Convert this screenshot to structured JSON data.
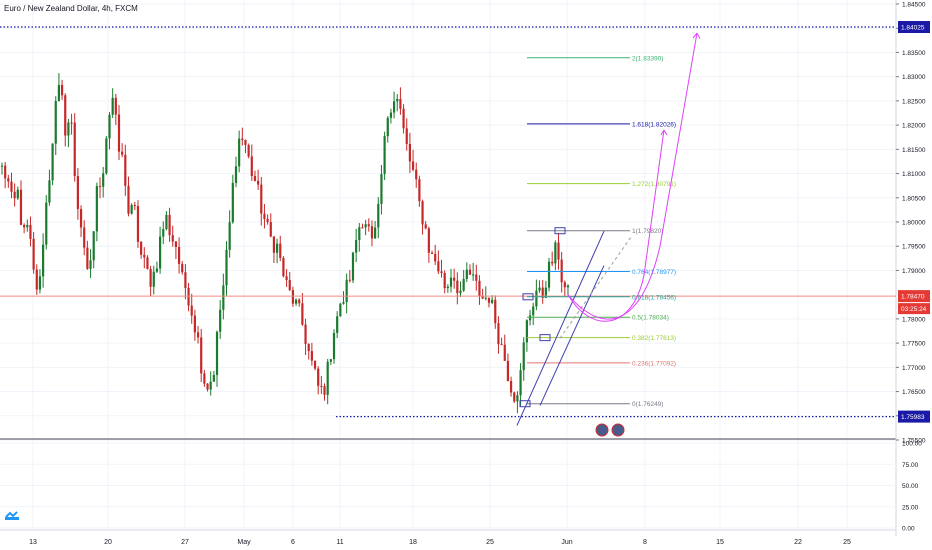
{
  "header": {
    "title": "Euro / New Zealand Dollar, 4h, FXCM"
  },
  "colors": {
    "up": "#26a69a",
    "up_dark": "#1b7a2e",
    "down": "#ef5350",
    "down_dark": "#c62828",
    "grid": "#f0f3fa",
    "axis_text": "#131722",
    "dotted_level": "#1a1aa6",
    "price_line": "#f28b82",
    "price_label": "#e53935",
    "curve": "#e040fb",
    "channel": "#3f3faf",
    "fib_0": "#787b86",
    "fib_0236": "#e57373",
    "fib_0382": "#9acd32",
    "fib_05": "#4caf50",
    "fib_0618": "#26a69a",
    "fib_0764": "#2196f3",
    "fib_1": "#787b86",
    "fib_1272": "#9acd32",
    "fib_1618": "#1a1aa6",
    "fib_2": "#3cb371"
  },
  "chart_data": [
    {
      "type": "candlestick",
      "title": "Euro / New Zealand Dollar, 4h, FXCM",
      "symbol": "EURNZD",
      "interval": "4h",
      "source": "FXCM",
      "x_ticks": [
        "13",
        "20",
        "27",
        "May",
        "6",
        "11",
        "18",
        "25",
        "Jun",
        "8",
        "15",
        "22",
        "25"
      ],
      "y_ticks": [
        "1.84500",
        "1.84000",
        "1.83500",
        "1.83000",
        "1.82500",
        "1.82000",
        "1.81500",
        "1.81000",
        "1.80500",
        "1.80000",
        "1.79500",
        "1.79000",
        "1.78000",
        "1.77500",
        "1.77000",
        "1.76500",
        "1.76000",
        "1.75500"
      ],
      "ylim": [
        1.755,
        1.845
      ],
      "current_price": "1.78470",
      "countdown": "03:25:24",
      "levels": [
        {
          "label": "1.84025",
          "value": 1.84025,
          "style": "dotted"
        },
        {
          "label": "1.75983",
          "value": 1.75983,
          "style": "dotted"
        }
      ],
      "fibonacci": [
        {
          "label": "2(1.83390)",
          "ratio": 2,
          "value": 1.8339
        },
        {
          "label": "1.618(1.82026)",
          "ratio": 1.618,
          "value": 1.82026
        },
        {
          "label": "1.272(1.80791)",
          "ratio": 1.272,
          "value": 1.80791
        },
        {
          "label": "1(1.79820)",
          "ratio": 1,
          "value": 1.7982
        },
        {
          "label": "0.764(1.78977)",
          "ratio": 0.764,
          "value": 1.78977
        },
        {
          "label": "0.618(1.78456)",
          "ratio": 0.618,
          "value": 1.78456
        },
        {
          "label": "0.5(1.78034)",
          "ratio": 0.5,
          "value": 1.78034
        },
        {
          "label": "0.382(1.77613)",
          "ratio": 0.382,
          "value": 1.77613
        },
        {
          "label": "0.236(1.77092)",
          "ratio": 0.236,
          "value": 1.77092
        },
        {
          "label": "0(1.76249)",
          "ratio": 0,
          "value": 1.76249
        }
      ],
      "path": [
        [
          1.811,
          1.809
        ],
        [
          1.803,
          1.806
        ],
        [
          1.797,
          1.799
        ],
        [
          1.789,
          1.785
        ],
        [
          1.8,
          1.81
        ],
        [
          1.823,
          1.828
        ],
        [
          1.819,
          1.822
        ],
        [
          1.806,
          1.799
        ],
        [
          1.788,
          1.794
        ],
        [
          1.807,
          1.81
        ],
        [
          1.821,
          1.826
        ],
        [
          1.815,
          1.812
        ],
        [
          1.801,
          1.803
        ],
        [
          1.794,
          1.791
        ],
        [
          1.788,
          1.79
        ],
        [
          1.797,
          1.801
        ],
        [
          1.797,
          1.795
        ],
        [
          1.788,
          1.786
        ],
        [
          1.781,
          1.776
        ],
        [
          1.768,
          1.766
        ],
        [
          1.769,
          1.78
        ],
        [
          1.788,
          1.799
        ],
        [
          1.812,
          1.818
        ],
        [
          1.816,
          1.811
        ],
        [
          1.808,
          1.803
        ],
        [
          1.799,
          1.796
        ],
        [
          1.795,
          1.79
        ],
        [
          1.786,
          1.784
        ],
        [
          1.782,
          1.778
        ],
        [
          1.773,
          1.769
        ],
        [
          1.765,
          1.766
        ],
        [
          1.772,
          1.78
        ],
        [
          1.782,
          1.786
        ],
        [
          1.79,
          1.797
        ],
        [
          1.801,
          1.8
        ],
        [
          1.795,
          1.8
        ],
        [
          1.813,
          1.823
        ],
        [
          1.826,
          1.825
        ],
        [
          1.818,
          1.813
        ],
        [
          1.809,
          1.803
        ],
        [
          1.799,
          1.793
        ],
        [
          1.792,
          1.789
        ],
        [
          1.786,
          1.79
        ],
        [
          1.787,
          1.785
        ],
        [
          1.79,
          1.788
        ],
        [
          1.786,
          1.784
        ],
        [
          1.785,
          1.781
        ],
        [
          1.776,
          1.772
        ],
        [
          1.767,
          1.764
        ],
        [
          1.768,
          1.778
        ],
        [
          1.782,
          1.786
        ],
        [
          1.784,
          1.789
        ],
        [
          1.792,
          1.795
        ],
        [
          1.787,
          1.785
        ]
      ],
      "indicator": {
        "y_ticks": [
          "100.00",
          "75.00",
          "50.00",
          "25.00",
          "0.00"
        ],
        "ylim": [
          0,
          100
        ]
      }
    }
  ]
}
